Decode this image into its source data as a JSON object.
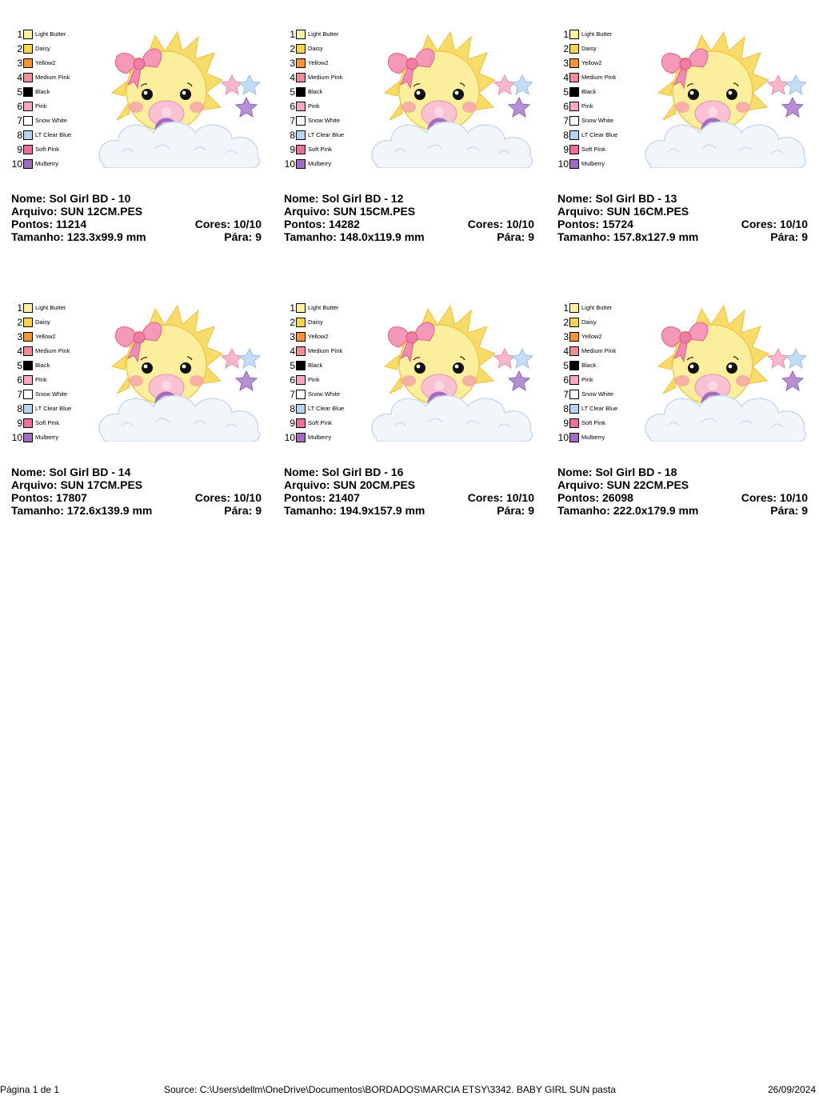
{
  "threads": [
    {
      "n": "1",
      "name": "Light Butter",
      "color": "#fbf0a4"
    },
    {
      "n": "2",
      "name": "Daisy",
      "color": "#f7d74a"
    },
    {
      "n": "3",
      "name": "Yellow2",
      "color": "#f7943a"
    },
    {
      "n": "4",
      "name": "Medium Pink",
      "color": "#ee8c97"
    },
    {
      "n": "5",
      "name": "Black",
      "color": "#000000"
    },
    {
      "n": "6",
      "name": "Pink",
      "color": "#f7a9c4"
    },
    {
      "n": "7",
      "name": "Snow White",
      "color": "#ffffff"
    },
    {
      "n": "8",
      "name": "LT Clear Blue",
      "color": "#b6d5f2"
    },
    {
      "n": "9",
      "name": "Soft Pink",
      "color": "#ea6f99"
    },
    {
      "n": "10",
      "name": "Mulberry",
      "color": "#a26cc1"
    }
  ],
  "designs": [
    {
      "nome": "Nome: Sol Girl BD - 10",
      "arquivo": "Arquivo: SUN 12CM.PES",
      "pontos": "Pontos: 11214",
      "cores": "Cores: 10/10",
      "tamanho": "Tamanho: 123.3x99.9 mm",
      "para": "Pára: 9"
    },
    {
      "nome": "Nome: Sol Girl BD - 12",
      "arquivo": "Arquivo: SUN 15CM.PES",
      "pontos": "Pontos: 14282",
      "cores": "Cores: 10/10",
      "tamanho": "Tamanho: 148.0x119.9 mm",
      "para": "Pára: 9"
    },
    {
      "nome": "Nome: Sol Girl BD - 13",
      "arquivo": "Arquivo: SUN 16CM.PES",
      "pontos": "Pontos: 15724",
      "cores": "Cores: 10/10",
      "tamanho": "Tamanho: 157.8x127.9 mm",
      "para": "Pára: 9"
    },
    {
      "nome": "Nome: Sol Girl BD - 14",
      "arquivo": "Arquivo: SUN 17CM.PES",
      "pontos": "Pontos: 17807",
      "cores": "Cores: 10/10",
      "tamanho": "Tamanho: 172.6x139.9 mm",
      "para": "Pára: 9"
    },
    {
      "nome": "Nome: Sol Girl BD - 16",
      "arquivo": "Arquivo: SUN 20CM.PES",
      "pontos": "Pontos: 21407",
      "cores": "Cores: 10/10",
      "tamanho": "Tamanho: 194.9x157.9 mm",
      "para": "Pára: 9"
    },
    {
      "nome": "Nome: Sol Girl BD - 18",
      "arquivo": "Arquivo: SUN 22CM.PES",
      "pontos": "Pontos: 26098",
      "cores": "Cores: 10/10",
      "tamanho": "Tamanho: 222.0x179.9 mm",
      "para": "Pára: 9"
    }
  ],
  "footer": {
    "page": "Página 1 de 1",
    "source": "Source: C:\\Users\\dellm\\OneDrive\\Documentos\\BORDADOS\\MARCIA ETSY\\3342. BABY GIRL SUN pasta",
    "date": "26/09/2024"
  }
}
